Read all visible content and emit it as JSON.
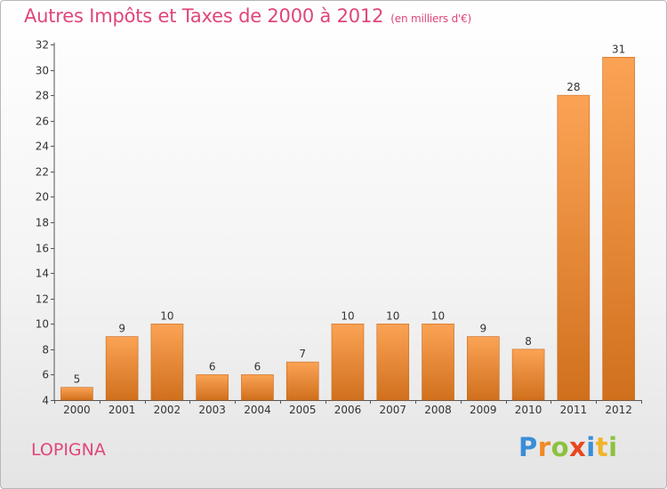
{
  "chart_data": {
    "type": "bar",
    "title": "Autres Impôts et Taxes de 2000 à 2012",
    "unit": "(en milliers d'€)",
    "categories": [
      "2000",
      "2001",
      "2002",
      "2003",
      "2004",
      "2005",
      "2006",
      "2007",
      "2008",
      "2009",
      "2010",
      "2011",
      "2012"
    ],
    "values": [
      5,
      9,
      10,
      6,
      6,
      7,
      10,
      10,
      10,
      9,
      8,
      28,
      31
    ],
    "ylim": [
      4,
      32
    ],
    "yticks": [
      "4",
      "6",
      "8",
      "10",
      "12",
      "14",
      "16",
      "18",
      "20",
      "22",
      "24",
      "26",
      "28",
      "30",
      "32"
    ],
    "grid": false,
    "bar_color": "#f0892e",
    "bar_top_color": "#fba355",
    "bar_bottom_color": "#d0701d"
  },
  "commune": "LOPIGNA",
  "logo": {
    "letters": [
      "P",
      "r",
      "o",
      "x",
      "i",
      "t",
      "i"
    ],
    "colors": [
      "#3a8ed8",
      "#f08a24",
      "#8bc23f",
      "#e8461f",
      "#3a8ed8",
      "#f0b428",
      "#8bc23f"
    ]
  },
  "title_color": "#e0457b"
}
